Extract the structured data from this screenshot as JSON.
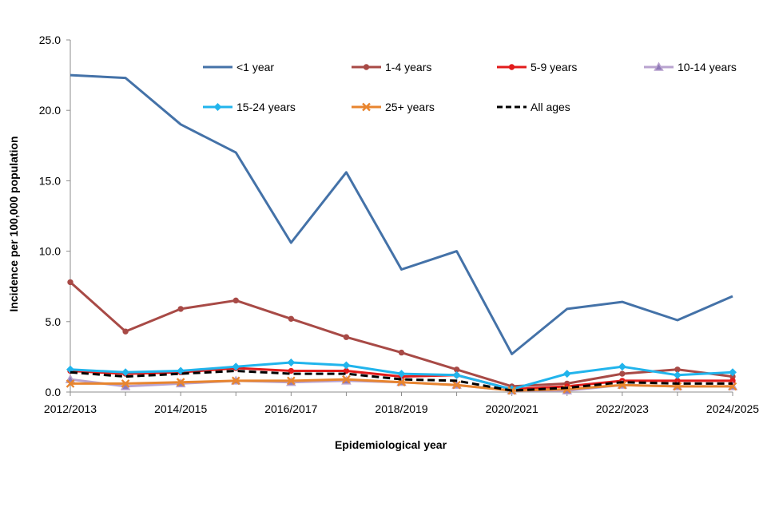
{
  "chart_data": {
    "type": "line",
    "title": "",
    "xlabel": "Epidemiological year",
    "ylabel": "Incidence per 100,000 population",
    "ylim": [
      0,
      25
    ],
    "y_ticks": [
      "0.0",
      "5.0",
      "10.0",
      "15.0",
      "20.0",
      "25.0"
    ],
    "x_tick_labels": [
      "2012/2013",
      "2014/2015",
      "2016/2017",
      "2018/2019",
      "2020/2021",
      "2022/2023",
      "2024/2025"
    ],
    "x": [
      "2012/2013",
      "2013/2014",
      "2014/2015",
      "2015/2016",
      "2016/2017",
      "2017/2018",
      "2018/2019",
      "2019/2020",
      "2020/2021",
      "2021/2022",
      "2022/2023",
      "2023/2024",
      "2024/2025"
    ],
    "legend_position": "top-right",
    "grid": false,
    "series": [
      {
        "name": "<1 year",
        "color": "#4472A8",
        "marker": "none",
        "dash": "solid",
        "values": [
          22.5,
          22.3,
          19.0,
          17.0,
          10.6,
          15.6,
          8.7,
          10.0,
          2.7,
          5.9,
          6.4,
          5.1,
          6.8
        ]
      },
      {
        "name": "1-4 years",
        "color": "#A84A46",
        "marker": "circle",
        "dash": "solid",
        "values": [
          7.8,
          4.3,
          5.9,
          6.5,
          5.2,
          3.9,
          2.8,
          1.6,
          0.4,
          0.6,
          1.3,
          1.6,
          1.1
        ]
      },
      {
        "name": "5-9 years",
        "color": "#E21B1B",
        "marker": "circle",
        "dash": "solid",
        "values": [
          1.5,
          1.3,
          1.4,
          1.7,
          1.5,
          1.5,
          1.1,
          1.2,
          0.2,
          0.4,
          0.8,
          0.8,
          0.8
        ]
      },
      {
        "name": "10-14 years",
        "color": "#B9A3CF",
        "marker": "triangle",
        "dash": "solid",
        "values": [
          0.9,
          0.4,
          0.6,
          0.8,
          0.7,
          0.8,
          0.7,
          0.5,
          0.1,
          0.1,
          0.5,
          0.4,
          0.4
        ]
      },
      {
        "name": "15-24 years",
        "color": "#21B4EC",
        "marker": "diamond",
        "dash": "solid",
        "values": [
          1.6,
          1.4,
          1.5,
          1.8,
          2.1,
          1.9,
          1.3,
          1.2,
          0.2,
          1.3,
          1.8,
          1.2,
          1.4
        ]
      },
      {
        "name": "25+ years",
        "color": "#E8852F",
        "marker": "x",
        "dash": "solid",
        "values": [
          0.6,
          0.6,
          0.7,
          0.8,
          0.8,
          0.9,
          0.7,
          0.5,
          0.1,
          0.2,
          0.5,
          0.4,
          0.4
        ]
      },
      {
        "name": "All ages",
        "color": "#000000",
        "marker": "none",
        "dash": "dashed",
        "values": [
          1.4,
          1.1,
          1.3,
          1.5,
          1.3,
          1.3,
          0.9,
          0.8,
          0.1,
          0.3,
          0.7,
          0.6,
          0.6
        ]
      }
    ]
  }
}
